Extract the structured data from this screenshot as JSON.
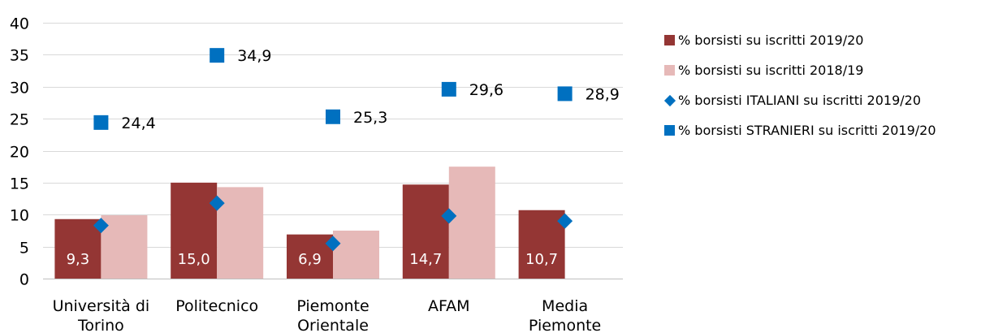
{
  "chart_data": {
    "type": "bar",
    "categories": [
      [
        "Università di",
        "Torino"
      ],
      [
        "Politecnico"
      ],
      [
        "Piemonte",
        "Orientale"
      ],
      [
        "AFAM"
      ],
      [
        "Media",
        "Piemonte"
      ]
    ],
    "ylim": [
      0,
      40
    ],
    "yticks": [
      0,
      5,
      10,
      15,
      20,
      25,
      30,
      35,
      40
    ],
    "grid": true,
    "legend_position": "right",
    "series": [
      {
        "name": "% borsisti su iscritti 2019/20",
        "kind": "bar",
        "color": "#943634",
        "values": [
          9.3,
          15.0,
          6.9,
          14.7,
          10.7
        ],
        "labels": [
          "9,3",
          "15,0",
          "6,9",
          "14,7",
          "10,7"
        ]
      },
      {
        "name": "% borsisti su iscritti 2018/19",
        "kind": "bar",
        "color": "#e6b9b8",
        "values": [
          9.9,
          14.3,
          7.5,
          17.5,
          null
        ]
      },
      {
        "name": "% borsisti ITALIANI su iscritti 2019/20",
        "kind": "marker-diamond",
        "color": "#0070c0",
        "values": [
          8.3,
          11.8,
          5.5,
          9.8,
          9.0
        ]
      },
      {
        "name": "% borsisti STRANIERI su iscritti 2019/20",
        "kind": "marker-square",
        "color": "#0070c0",
        "values": [
          24.4,
          34.9,
          25.3,
          29.6,
          28.9
        ],
        "labels": [
          "24,4",
          "34,9",
          "25,3",
          "29,6",
          "28,9"
        ]
      }
    ]
  }
}
